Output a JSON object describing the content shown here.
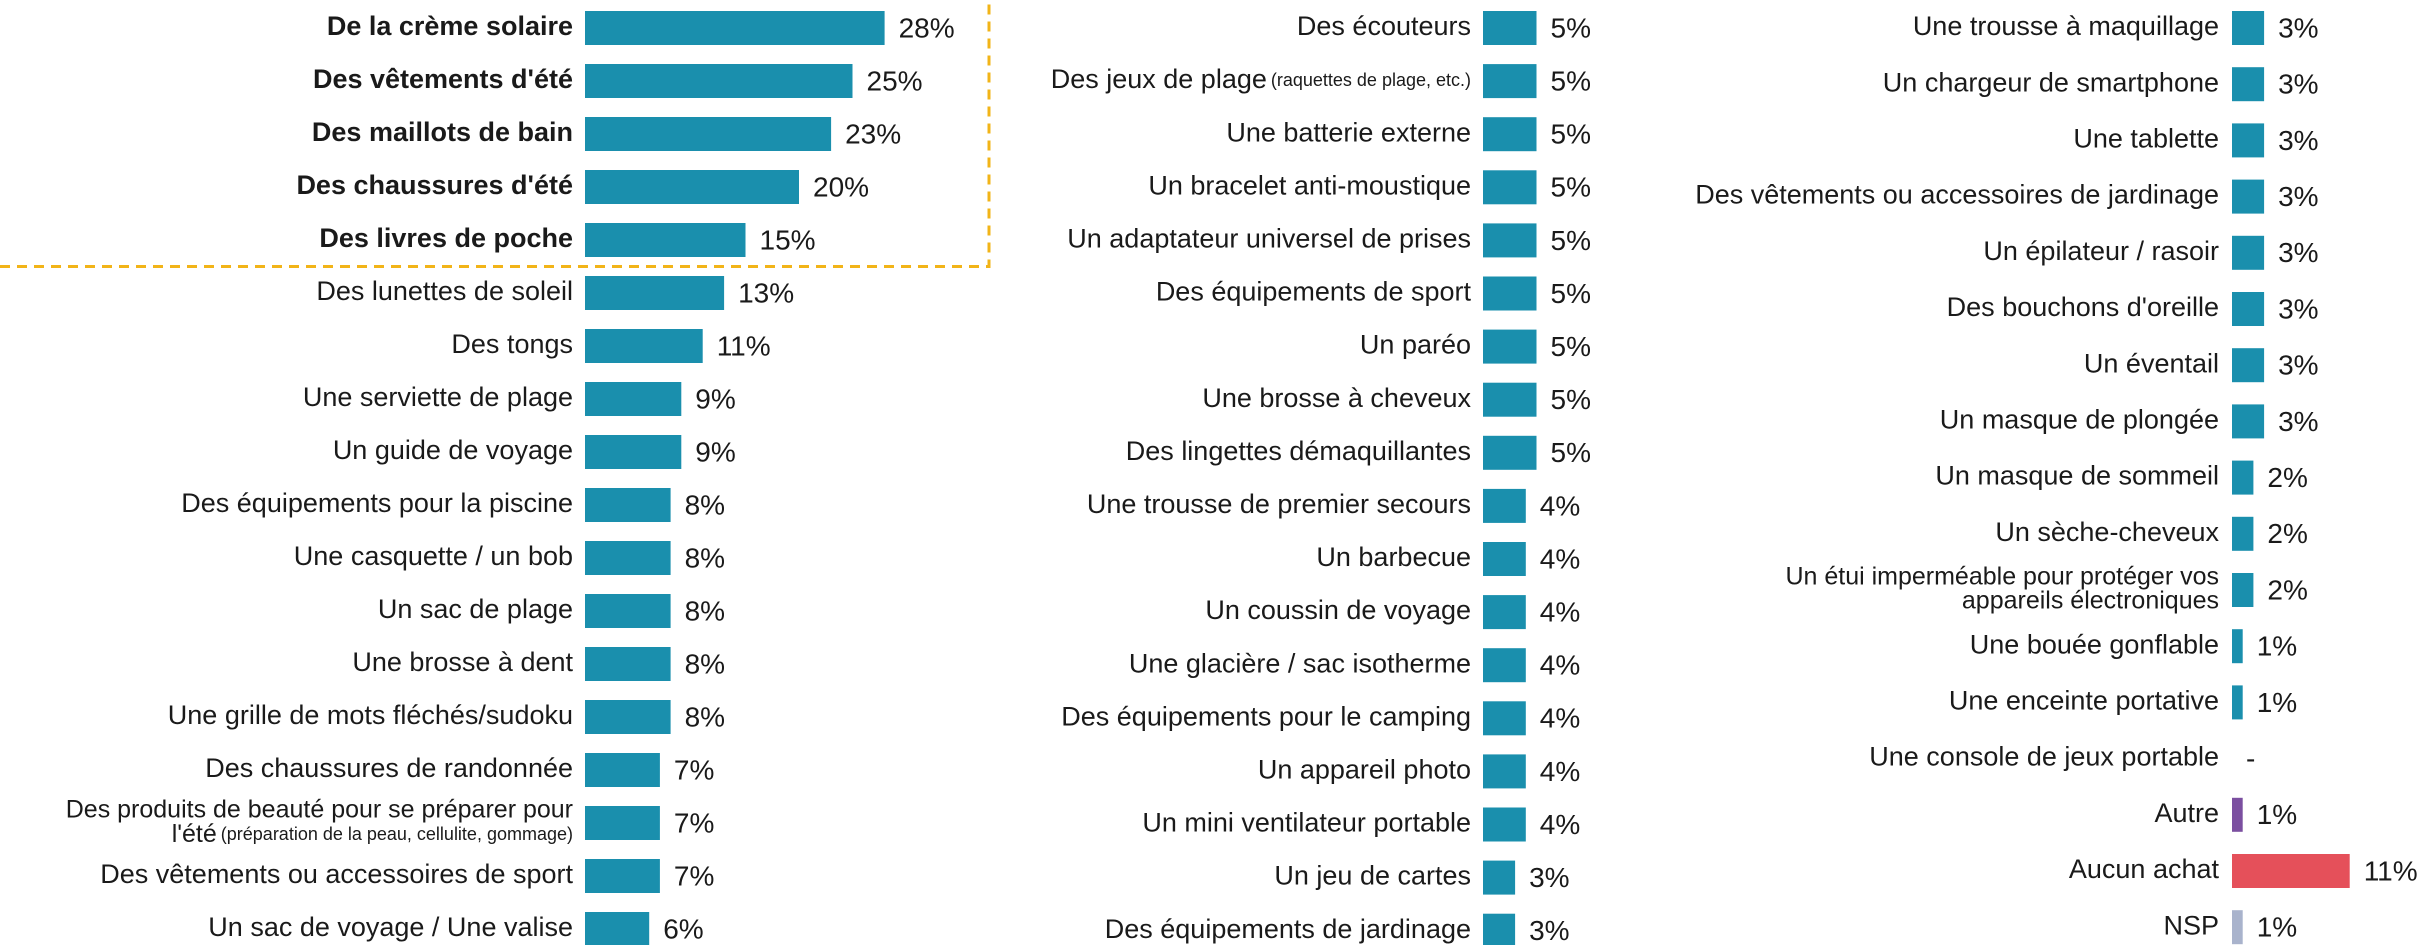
{
  "chart_data": [
    {
      "type": "bar",
      "orientation": "horizontal",
      "color": "#1a8fad",
      "highlighted": 5,
      "highlight_color": "#f2b418",
      "categories": [
        "De la crème solaire",
        "Des vêtements d'été",
        "Des maillots de bain",
        "Des chaussures d'été",
        "Des livres de poche",
        "Des lunettes de soleil",
        "Des tongs",
        "Une serviette de plage",
        "Un guide de voyage",
        "Des équipements pour la piscine",
        "Une casquette / un bob",
        "Un sac de plage",
        "Une brosse à dent",
        "Une grille de mots fléchés/sudoku",
        "Des chaussures de randonnée",
        [
          "Des produits de beauté pour se préparer pour",
          {
            "text": "l'été",
            "note": "(préparation de la peau, cellulite, gommage)"
          }
        ],
        "Des vêtements ou accessoires de sport",
        "Un sac de voyage / Une valise"
      ],
      "values": [
        28,
        25,
        23,
        20,
        15,
        13,
        11,
        9,
        9,
        8,
        8,
        8,
        8,
        8,
        7,
        7,
        7,
        6
      ],
      "value_labels": [
        "28%",
        "25%",
        "23%",
        "20%",
        "15%",
        "13%",
        "11%",
        "9%",
        "9%",
        "8%",
        "8%",
        "8%",
        "8%",
        "8%",
        "7%",
        "7%",
        "7%",
        "6%"
      ]
    },
    {
      "type": "bar",
      "orientation": "horizontal",
      "color": "#1a8fad",
      "categories": [
        "Des écouteurs",
        [
          {
            "text": "Des jeux de plage",
            "note": "(raquettes de plage, etc.)"
          }
        ],
        "Une batterie externe",
        "Un bracelet anti-moustique",
        "Un adaptateur universel de prises",
        "Des équipements de sport",
        "Un paréo",
        "Une brosse à cheveux",
        "Des lingettes démaquillantes",
        "Une trousse de premier secours",
        "Un barbecue",
        "Un coussin de voyage",
        "Une glacière / sac isotherme",
        "Des équipements pour le camping",
        "Un appareil photo",
        "Un mini ventilateur portable",
        "Un jeu de cartes",
        "Des équipements de jardinage"
      ],
      "values": [
        5,
        5,
        5,
        5,
        5,
        5,
        5,
        5,
        5,
        4,
        4,
        4,
        4,
        4,
        4,
        4,
        3,
        3
      ],
      "value_labels": [
        "5%",
        "5%",
        "5%",
        "5%",
        "5%",
        "5%",
        "5%",
        "5%",
        "5%",
        "4%",
        "4%",
        "4%",
        "4%",
        "4%",
        "4%",
        "4%",
        "3%",
        "3%"
      ]
    },
    {
      "type": "bar",
      "orientation": "horizontal",
      "color": "#1a8fad",
      "colors": [
        null,
        null,
        null,
        null,
        null,
        null,
        null,
        null,
        null,
        null,
        null,
        null,
        null,
        null,
        "#7b4fa0",
        "#e5505a",
        "#a9b3cc"
      ],
      "categories": [
        "Une trousse à maquillage",
        "Un chargeur de smartphone",
        "Une tablette",
        "Des vêtements ou accessoires de jardinage",
        "Un épilateur / rasoir",
        "Des bouchons d'oreille",
        "Un éventail",
        "Un masque de plongée",
        "Un masque de sommeil",
        "Un sèche-cheveux",
        [
          "Un étui imperméable pour protéger vos",
          "appareils électroniques"
        ],
        "Une bouée gonflable",
        "Une enceinte portative",
        "Une console de jeux portable",
        "Autre",
        "Aucun achat",
        "NSP"
      ],
      "values": [
        3,
        3,
        3,
        3,
        3,
        3,
        3,
        3,
        2,
        2,
        2,
        1,
        1,
        null,
        1,
        11,
        1
      ],
      "value_labels": [
        "3%",
        "3%",
        "3%",
        "3%",
        "3%",
        "3%",
        "3%",
        "3%",
        "2%",
        "2%",
        "2%",
        "1%",
        "1%",
        "-",
        "1%",
        "11%",
        "1%"
      ]
    }
  ]
}
